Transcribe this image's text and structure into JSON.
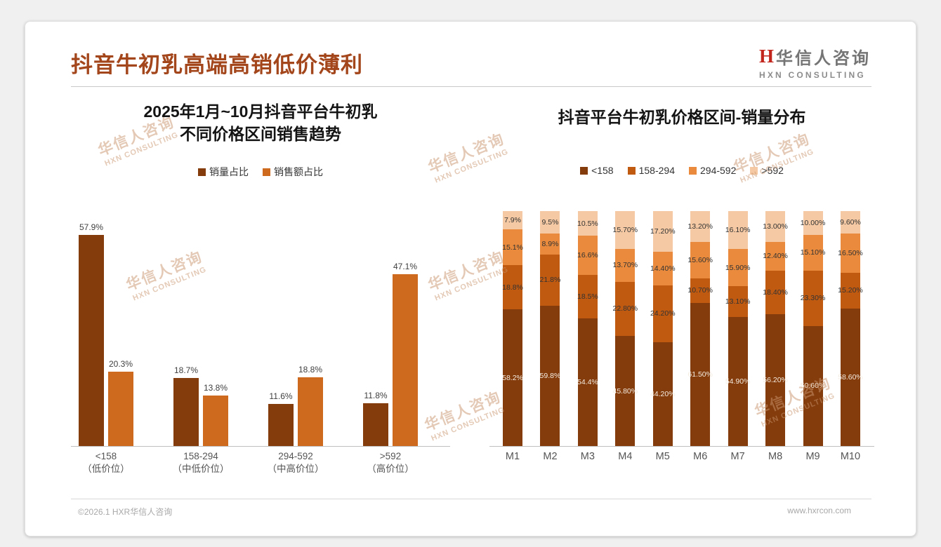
{
  "page": {
    "title": "抖音牛初乳高端高销低价薄利",
    "title_color": "#A3461C",
    "footer_left": "©2026.1 HXR华信人咨询",
    "footer_right": "www.hxrcon.com"
  },
  "logo": {
    "mark": "H",
    "name_cn": "华信人咨询",
    "name_en": "HXN CONSULTING"
  },
  "watermark": {
    "line1": "华信人咨询",
    "line2": "HXN CONSULTING"
  },
  "chart_data": [
    {
      "type": "bar",
      "title_lines": [
        "2025年1月~10月抖音平台牛初乳",
        "不同价格区间销售趋势"
      ],
      "categories": [
        "<158",
        "158-294",
        "294-592",
        ">592"
      ],
      "category_sublabels": [
        "（低价位）",
        "（中低价位）",
        "（中高价位）",
        "（高价位）"
      ],
      "series": [
        {
          "name": "销量占比",
          "color": "#843C0C",
          "values": [
            57.9,
            18.7,
            11.6,
            11.8
          ],
          "labels": [
            "57.9%",
            "18.7%",
            "11.6%",
            "11.8%"
          ]
        },
        {
          "name": "销售额占比",
          "color": "#CD6A1E",
          "values": [
            20.3,
            13.8,
            18.8,
            47.1
          ],
          "labels": [
            "20.3%",
            "13.8%",
            "18.8%",
            "47.1%"
          ]
        }
      ],
      "ylim": [
        0,
        60
      ],
      "grid": false,
      "legend_position": "top"
    },
    {
      "type": "stacked-bar",
      "title": "抖音平台牛初乳价格区间-销量分布",
      "categories": [
        "M1",
        "M2",
        "M3",
        "M4",
        "M5",
        "M6",
        "M7",
        "M8",
        "M9",
        "M10"
      ],
      "stack_total": 100,
      "series": [
        {
          "name": "<158",
          "color": "#843C0C",
          "values": [
            58.2,
            59.8,
            54.4,
            45.8,
            44.2,
            61.5,
            54.9,
            56.2,
            50.6,
            58.6
          ],
          "labels": [
            "58.2%",
            "59.8%",
            "54.4%",
            "45.80%",
            "44.20%",
            "61.50%",
            "54.90%",
            "56.20%",
            "50.60%",
            "58.60%"
          ]
        },
        {
          "name": "158-294",
          "color": "#C05A11",
          "values": [
            18.8,
            21.8,
            18.5,
            22.8,
            24.2,
            10.7,
            13.1,
            18.4,
            23.3,
            15.2
          ],
          "labels": [
            "18.8%",
            "21.8%",
            "18.5%",
            "22.80%",
            "24.20%",
            "10.70%",
            "13.10%",
            "18.40%",
            "23.30%",
            "15.20%"
          ]
        },
        {
          "name": "294-592",
          "color": "#E98A3C",
          "values": [
            15.1,
            8.9,
            16.6,
            13.7,
            14.4,
            15.6,
            15.9,
            12.4,
            15.1,
            16.5
          ],
          "labels": [
            "15.1%",
            "8.9%",
            "16.6%",
            "13.70%",
            "14.40%",
            "15.60%",
            "15.90%",
            "12.40%",
            "15.10%",
            "16.50%"
          ]
        },
        {
          "name": ">592",
          "color": "#F5C9A3",
          "values": [
            7.9,
            9.5,
            10.5,
            15.7,
            17.2,
            13.2,
            16.1,
            13.0,
            10.0,
            9.6
          ],
          "labels": [
            "7.9%",
            "9.5%",
            "10.5%",
            "15.70%",
            "17.20%",
            "13.20%",
            "16.10%",
            "13.00%",
            "10.00%",
            "9.60%"
          ]
        }
      ],
      "legend_position": "top"
    }
  ]
}
